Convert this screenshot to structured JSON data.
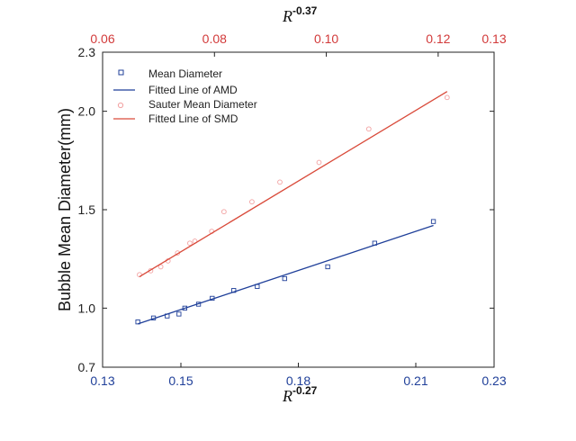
{
  "chart_data": {
    "type": "scatter",
    "x_bottom": {
      "label_base": "R",
      "label_exp": "-0.27",
      "range": [
        0.13,
        0.23
      ],
      "ticks": [
        0.13,
        0.15,
        0.18,
        0.21,
        0.23
      ],
      "tick_labels": [
        "0.13",
        "0.15",
        "0.18",
        "0.21",
        "0.23"
      ],
      "color": "#1f3f99"
    },
    "x_top": {
      "label_base": "R",
      "label_exp": "-0.37",
      "range": [
        0.06,
        0.13
      ],
      "ticks": [
        0.06,
        0.08,
        0.1,
        0.12,
        0.13
      ],
      "tick_labels": [
        "0.06",
        "0.08",
        "0.10",
        "0.12",
        "0.13"
      ],
      "color": "#d23a3a"
    },
    "y": {
      "label": "Bubble Mean Diameter(mm)",
      "range": [
        0.7,
        2.3
      ],
      "ticks": [
        0.7,
        1.0,
        1.5,
        2.0,
        2.3
      ],
      "tick_labels": [
        "0.7",
        "1.0",
        "1.5",
        "2.0",
        "2.3"
      ]
    },
    "legend_position": "top-left",
    "grid": false,
    "series": [
      {
        "name": "Mean Diameter",
        "kind": "points",
        "axis": "bottom",
        "marker": "square",
        "color": "#1f3f99",
        "x": [
          0.139,
          0.143,
          0.1465,
          0.1495,
          0.151,
          0.1545,
          0.158,
          0.1635,
          0.1695,
          0.1765,
          0.1875,
          0.1995,
          0.2145
        ],
        "y": [
          0.93,
          0.95,
          0.96,
          0.97,
          1.0,
          1.02,
          1.05,
          1.09,
          1.11,
          1.15,
          1.21,
          1.33,
          1.44
        ]
      },
      {
        "name": "Fitted Line of AMD",
        "kind": "line",
        "axis": "bottom",
        "color": "#1f3f99",
        "x": [
          0.139,
          0.2145
        ],
        "y": [
          0.92,
          1.42
        ]
      },
      {
        "name": "Sauter Mean Diameter",
        "kind": "points",
        "axis": "top",
        "marker": "circle",
        "color": "#f2a0a0",
        "x": [
          0.0666,
          0.0686,
          0.0704,
          0.0717,
          0.0734,
          0.0756,
          0.0765,
          0.0795,
          0.0817,
          0.0867,
          0.0917,
          0.0987,
          0.1076,
          0.1216
        ],
        "y": [
          1.17,
          1.19,
          1.21,
          1.24,
          1.28,
          1.33,
          1.34,
          1.39,
          1.49,
          1.54,
          1.64,
          1.74,
          1.91,
          2.07
        ]
      },
      {
        "name": "Fitted Line of SMD",
        "kind": "line",
        "axis": "top",
        "color": "#d94a3a",
        "x": [
          0.0666,
          0.1216
        ],
        "y": [
          1.16,
          2.1
        ]
      }
    ]
  }
}
